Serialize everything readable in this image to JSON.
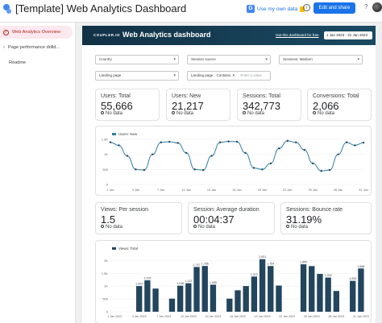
{
  "app": {
    "title": "[Template] Web Analytics Dashboard",
    "use_data_label": "Use my own data",
    "share_label": "Edit and share",
    "help_label": "?",
    "info_label": "i"
  },
  "sidebar": {
    "items": [
      {
        "label": "Web Analytics Overview",
        "active": true
      },
      {
        "label": "Page performance drilld...",
        "active": false
      },
      {
        "label": "Readme",
        "active": false
      }
    ]
  },
  "banner": {
    "logo_text": "COUPLER.IO",
    "title": "Web Analytics dashboard",
    "free_link": "Get this dashboard for free",
    "date_range": "1 Jan 2023 - 31 Jan 2023"
  },
  "filters": [
    {
      "label": "Country",
      "value": ""
    },
    {
      "label": "Session source",
      "value": ""
    },
    {
      "label": "Sessions: Medium",
      "value": ""
    },
    {
      "label": "Landing page",
      "value": ""
    },
    {
      "label": "Landing page",
      "operator": "Contains",
      "placeholder": "Enter a value"
    }
  ],
  "kpis_top": [
    {
      "label": "Users: Total",
      "value": "55,666",
      "note": "No data"
    },
    {
      "label": "Users: New",
      "value": "21,217",
      "note": "No data"
    },
    {
      "label": "Sessions: Total",
      "value": "342,773",
      "note": "No data"
    },
    {
      "label": "Conversions: Total",
      "value": "2,066",
      "note": "No data"
    }
  ],
  "kpis_mid": [
    {
      "label": "Views: Per session",
      "value": "1.5",
      "note": "No data"
    },
    {
      "label": "Session: Average duration",
      "value": "00:04:37",
      "note": "No data"
    },
    {
      "label": "Sessions: Bounce rate",
      "value": "31.19%",
      "note": "No data"
    }
  ],
  "chart_data": [
    {
      "type": "line",
      "series": [
        {
          "name": "Users: New",
          "values": [
            1400,
            1300,
            950,
            500,
            480,
            1000,
            1400,
            1420,
            1380,
            1050,
            500,
            480,
            950,
            1400,
            1430,
            1420,
            1050,
            550,
            500,
            700,
            1200,
            1450,
            1400,
            1150,
            700,
            450,
            480,
            1000,
            1400,
            1300,
            1390
          ]
        }
      ],
      "x_tick_labels": [
        "1 Jan",
        "2 Jan",
        "3 Jan",
        "4 Jan",
        "5 Jan",
        "6 Jan",
        "7 Jan",
        "8 Jan",
        "9 Jan",
        "10 Jan",
        "11 Jan",
        "12 Jan",
        "13 Jan",
        "14 Jan",
        "15 Jan",
        "16 Jan",
        "17 Jan",
        "18 Jan",
        "19 Jan",
        "20 Jan",
        "21 Jan",
        "22 Jan",
        "23 Jan",
        "24 Jan",
        "25 Jan",
        "26 Jan",
        "27 Jan",
        "28 Jan",
        "29 Jan",
        "30 Jan",
        "31 Jan"
      ],
      "y_ticks": [
        "0",
        "500",
        "1K",
        "1.5K"
      ],
      "ylim": [
        0,
        1500
      ],
      "legend": "top-left",
      "color": "#2f7ea6"
    },
    {
      "type": "bar",
      "series": [
        {
          "name": "Views: Total",
          "values": [
            0,
            0,
            0,
            1003,
            1225,
            903,
            0,
            511,
            1016,
            1112,
            1747,
            1786,
            1055,
            0,
            511,
            837,
            1002,
            1372,
            2051,
            1784,
            1021,
            0,
            0,
            1850,
            1780,
            1475,
            1333,
            810,
            0,
            1205,
            1688
          ]
        }
      ],
      "data_labels": [
        "",
        "",
        "",
        "1,003",
        "1,225",
        "",
        "",
        "",
        "1,016",
        "1,112",
        "1,747",
        "1,786",
        "1,055",
        "",
        "",
        "",
        "",
        "1,372",
        "2,051",
        "1,784",
        "",
        "",
        "",
        "1,850",
        "",
        "",
        "1,333",
        "",
        "",
        "1,205",
        "1,688"
      ],
      "x_tick_labels": [
        "1 Jan 2023",
        "2 Jan 2023",
        "3 Jan 2023",
        "4 Jan 2023",
        "5 Jan 2023",
        "6 Jan 2023",
        "7 Jan 2023",
        "8 Jan 2023",
        "9 Jan 2023",
        "10 Jan 2023",
        "11 Jan 2023",
        "12 Jan 2023",
        "13 Jan 2023",
        "14 Jan 2023",
        "15 Jan 2023",
        "16 Jan 2023",
        "17 Jan 2023",
        "18 Jan 2023",
        "19 Jan 2023",
        "20 Jan 2023",
        "21 Jan 2023",
        "22 Jan 2023",
        "23 Jan 2023",
        "24 Jan 2023",
        "25 Jan 2023",
        "26 Jan 2023",
        "27 Jan 2023",
        "28 Jan 2023",
        "29 Jan 2023",
        "30 Jan 2023",
        "31 Jan 2023"
      ],
      "y_ticks": [
        "0",
        "500",
        "1K",
        "1.5K",
        "2K"
      ],
      "ylim": [
        0,
        2200
      ],
      "legend": "top-left",
      "color": "#23455e"
    }
  ]
}
